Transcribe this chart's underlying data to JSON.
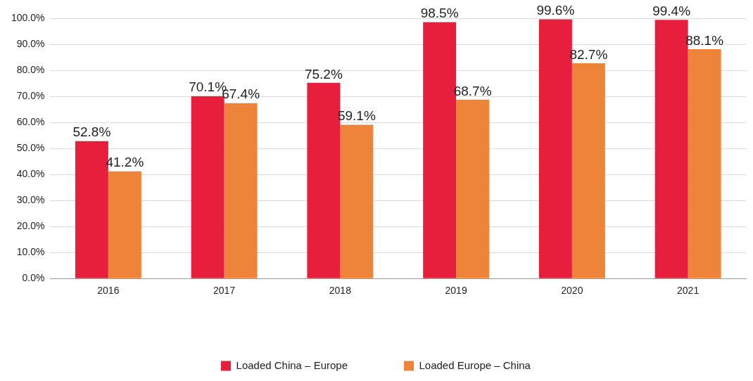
{
  "chart_data": {
    "type": "bar",
    "categories": [
      "2016",
      "2017",
      "2018",
      "2019",
      "2020",
      "2021"
    ],
    "series": [
      {
        "name": "Loaded China – Europe",
        "color": "#e61f3c",
        "values": [
          52.8,
          70.1,
          75.2,
          98.5,
          99.6,
          99.4
        ],
        "value_labels": [
          "52.8%",
          "70.1%",
          "75.2%",
          "98.5%",
          "99.6%",
          "99.4%"
        ]
      },
      {
        "name": "Loaded Europe – China",
        "color": "#ee843a",
        "values": [
          41.2,
          67.4,
          59.1,
          68.7,
          82.7,
          88.1
        ],
        "value_labels": [
          "41.2%",
          "67.4%",
          "59.1%",
          "68.7%",
          "82.7%",
          "88.1%"
        ]
      }
    ],
    "ylim": [
      0,
      100
    ],
    "yticks": [
      {
        "value": 0,
        "label": "0.0%"
      },
      {
        "value": 10,
        "label": "10.0%"
      },
      {
        "value": 20,
        "label": "20.0%"
      },
      {
        "value": 30,
        "label": "30.0%"
      },
      {
        "value": 40,
        "label": "40.0%"
      },
      {
        "value": 50,
        "label": "50.0%"
      },
      {
        "value": 60,
        "label": "60.0%"
      },
      {
        "value": 70,
        "label": "70.0%"
      },
      {
        "value": 80,
        "label": "80.0%"
      },
      {
        "value": 90,
        "label": "90.0%"
      },
      {
        "value": 100,
        "label": "100.0%"
      }
    ],
    "grid": "y",
    "legend": "bottom"
  }
}
